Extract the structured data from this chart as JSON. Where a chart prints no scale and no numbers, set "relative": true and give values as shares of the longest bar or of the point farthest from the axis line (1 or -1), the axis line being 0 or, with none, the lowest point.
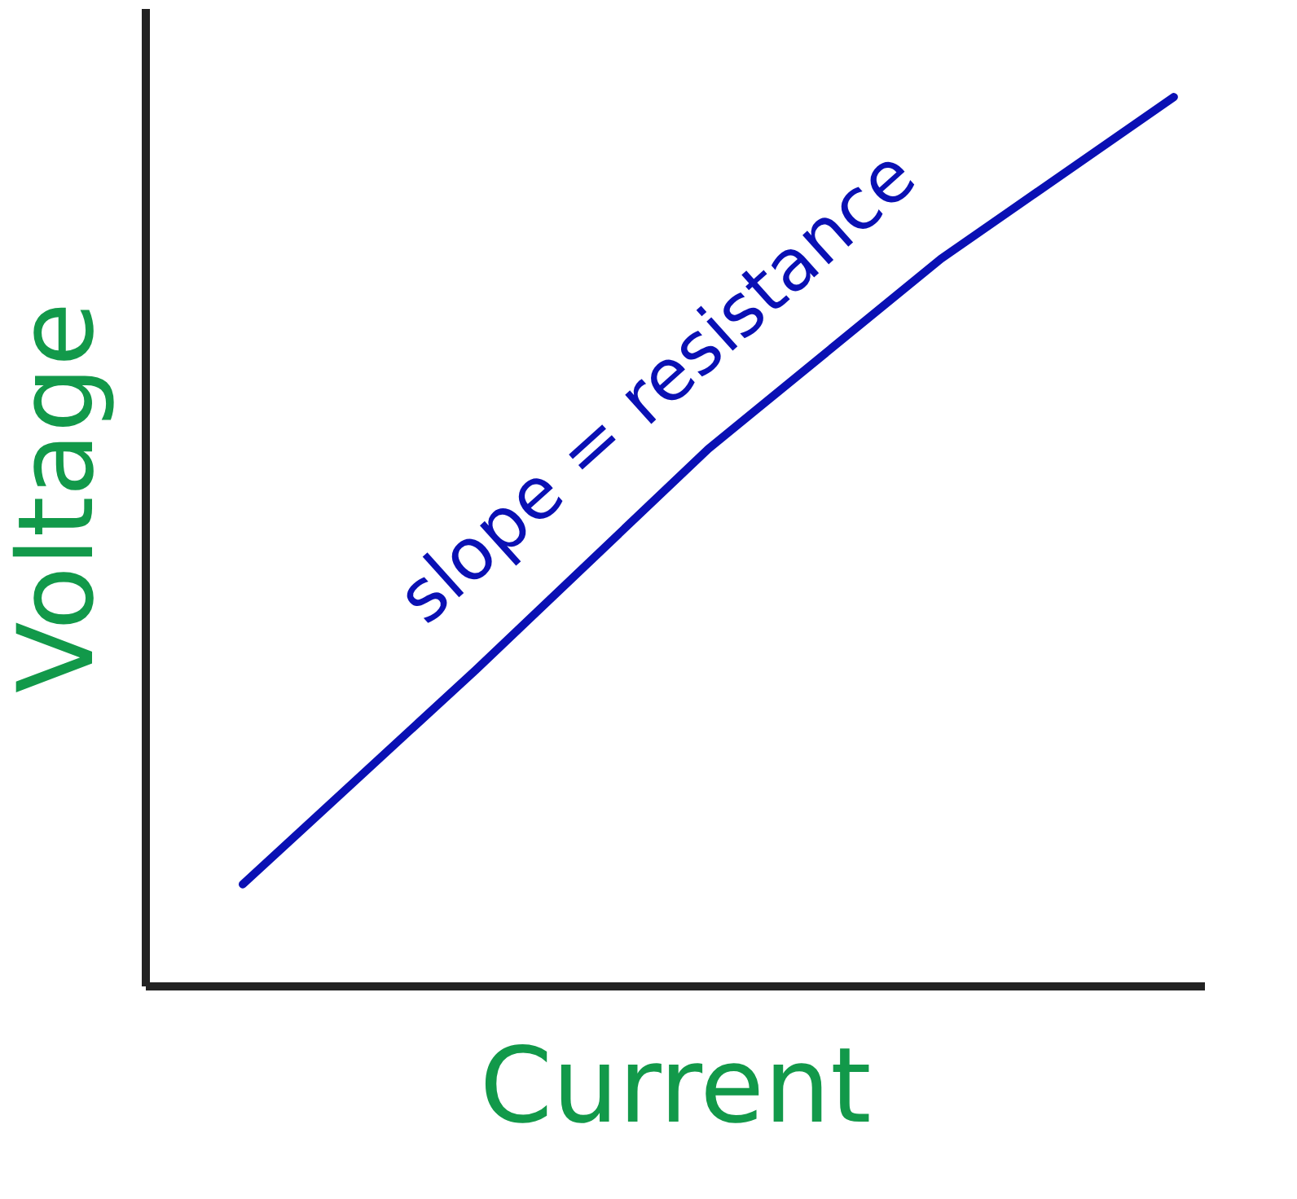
{
  "chart_data": {
    "type": "line",
    "relative": true,
    "xlabel": "Current",
    "ylabel": "Voltage",
    "categories": [
      null,
      null,
      null,
      null,
      null
    ],
    "series": [
      {
        "color": "#0a10b4",
        "values": [
          0.114,
          0.355,
          0.604,
          0.818,
          1
        ]
      }
    ],
    "annotations": [
      "slope = resistance"
    ],
    "grid": false,
    "marker": "none",
    "line_style": "solid"
  }
}
